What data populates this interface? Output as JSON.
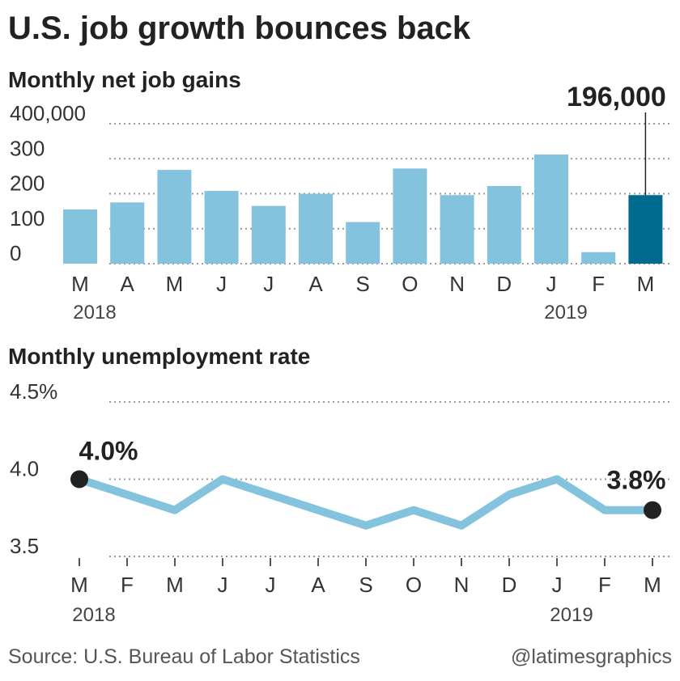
{
  "title": "U.S. job growth bounces back",
  "source": "Source: U.S. Bureau of Labor Statistics",
  "credit": "@latimesgraphics",
  "chart_data": [
    {
      "type": "bar",
      "title": "Monthly net job gains",
      "categories": [
        "M",
        "A",
        "M",
        "J",
        "J",
        "A",
        "S",
        "O",
        "N",
        "D",
        "J",
        "F",
        "M"
      ],
      "years": [
        "2018",
        null,
        null,
        null,
        null,
        null,
        null,
        null,
        null,
        null,
        "2019",
        null,
        null
      ],
      "values": [
        155,
        175,
        268,
        208,
        165,
        200,
        119,
        272,
        196,
        222,
        312,
        33,
        196
      ],
      "value_labels": [
        null,
        null,
        null,
        null,
        null,
        null,
        null,
        null,
        null,
        null,
        null,
        null,
        "196,000"
      ],
      "colors": [
        "#84c3de",
        "#84c3de",
        "#84c3de",
        "#84c3de",
        "#84c3de",
        "#84c3de",
        "#84c3de",
        "#84c3de",
        "#84c3de",
        "#84c3de",
        "#84c3de",
        "#84c3de",
        "#006b8f"
      ],
      "ylim": [
        0,
        400
      ],
      "yticks": [
        0,
        100,
        200,
        300,
        {
          "value": 400,
          "label": "400,000"
        }
      ],
      "grid": true
    },
    {
      "type": "line",
      "title": "Monthly unemployment rate",
      "categories": [
        "M",
        "F",
        "M",
        "J",
        "J",
        "A",
        "S",
        "O",
        "N",
        "D",
        "J",
        "F",
        "M"
      ],
      "years": [
        "2018",
        null,
        null,
        null,
        null,
        null,
        null,
        null,
        null,
        null,
        "2019",
        null,
        null
      ],
      "values": [
        4.0,
        3.9,
        3.8,
        4.0,
        3.9,
        3.8,
        3.7,
        3.8,
        3.7,
        3.9,
        4.0,
        3.8,
        3.8
      ],
      "value_labels": [
        "4.0%",
        null,
        null,
        null,
        null,
        null,
        null,
        null,
        null,
        null,
        null,
        null,
        "3.8%"
      ],
      "color": "#84c3de",
      "ylim": [
        3.5,
        4.5
      ],
      "yticks": [
        3.5,
        {
          "value": 4.0,
          "label": "4.0"
        },
        {
          "value": 4.5,
          "label": "4.5%"
        }
      ],
      "grid": true
    }
  ]
}
